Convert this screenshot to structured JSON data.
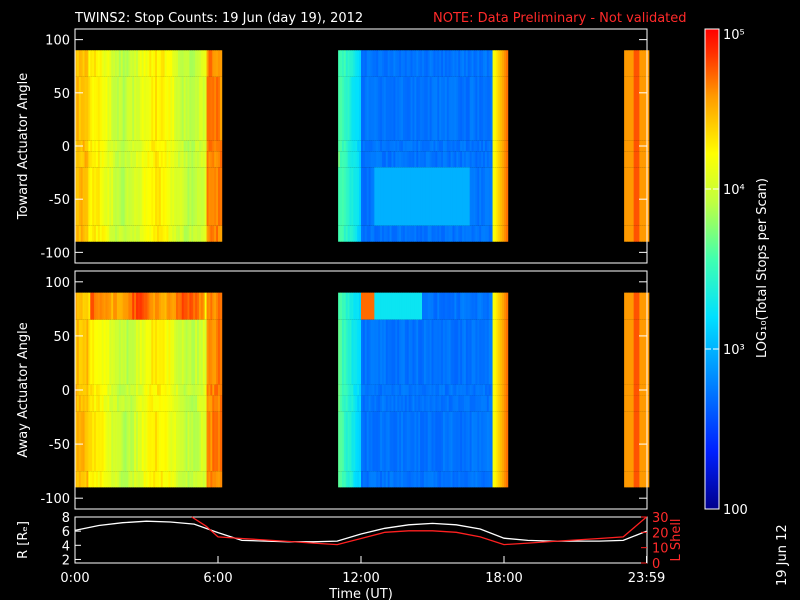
{
  "header": {
    "title": "TWINS2: Stop Counts: 19 Jun (day  19), 2012",
    "note": "NOTE: Data Preliminary - Not validated"
  },
  "side_date": "19 Jun 12",
  "colors": {
    "title": "#ffffff",
    "note": "#ff2020",
    "lshell": "#ff2020",
    "r": "#ffffff",
    "background": "#000000"
  },
  "chart_data": [
    {
      "type": "heatmap",
      "panel": "top",
      "ylabel": "Toward Actuator Angle",
      "ylim": [
        -110,
        110
      ],
      "yticks": [
        "100",
        "50",
        "0",
        "-50",
        "-100"
      ],
      "xlim": [
        0,
        24
      ],
      "data_coverage_hours": [
        [
          0.0,
          6.1
        ],
        [
          11.0,
          18.1
        ],
        [
          23.0,
          24.0
        ]
      ],
      "angle_range": [
        -90,
        90
      ],
      "colorscale": "log10",
      "description_levels": "segment1: yellow/orange ~1e4-3e4 counts; segment2: blue ~600-1500 counts; segment3: orange ~3e4"
    },
    {
      "type": "heatmap",
      "panel": "middle",
      "ylabel": "Away Actuator Angle",
      "ylim": [
        -110,
        110
      ],
      "yticks": [
        "100",
        "50",
        "0",
        "-50",
        "-100"
      ],
      "xlim": [
        0,
        24
      ],
      "data_coverage_hours": [
        [
          0.0,
          6.1
        ],
        [
          11.0,
          18.1
        ],
        [
          23.0,
          24.0
        ]
      ],
      "angle_range": [
        -90,
        90
      ],
      "colorscale": "log10"
    },
    {
      "type": "line",
      "panel": "bottom",
      "xlabel": "Time (UT)",
      "xticks": [
        "0:00",
        "6:00",
        "12:00",
        "18:00",
        "23:59"
      ],
      "ylabel_left": "R [Rₑ]",
      "yticks_left": [
        "8",
        "6",
        "4",
        "2"
      ],
      "ylim_left": [
        1.5,
        8
      ],
      "ylabel_right": "L Shell",
      "yticks_right": [
        "30",
        "20",
        "10",
        "0"
      ],
      "ylim_right": [
        0,
        30
      ],
      "series": [
        {
          "name": "R [Rₑ]",
          "axis": "left",
          "color": "#ffffff",
          "x": [
            0,
            1,
            2,
            3,
            4,
            5,
            6,
            7,
            8,
            9,
            10,
            11,
            12,
            13,
            14,
            15,
            16,
            17,
            18,
            19,
            20,
            21,
            22,
            23,
            23.98
          ],
          "y": [
            6.1,
            6.8,
            7.2,
            7.4,
            7.3,
            7.0,
            5.8,
            4.7,
            4.6,
            4.5,
            4.5,
            4.6,
            5.6,
            6.4,
            6.9,
            7.1,
            6.9,
            6.3,
            5.0,
            4.7,
            4.6,
            4.6,
            4.6,
            4.7,
            6.0
          ]
        },
        {
          "name": "L Shell",
          "axis": "right",
          "color": "#ff2020",
          "x": [
            4.9,
            5.5,
            6.0,
            7.0,
            8.0,
            9.0,
            10.0,
            11.0,
            12.0,
            13.0,
            14.0,
            15.0,
            16.0,
            17.0,
            18.0,
            19.0,
            20.0,
            21.0,
            22.0,
            23.0,
            23.98
          ],
          "y": [
            30,
            24,
            17,
            16,
            15,
            14,
            13,
            12,
            16,
            20,
            21,
            21,
            20,
            17,
            12,
            13,
            14,
            15,
            16,
            17,
            30
          ]
        }
      ]
    }
  ],
  "colorbar": {
    "label": "LOG₁₀(Total Stops per Scan)",
    "ticks": [
      "10⁵",
      "10⁴",
      "10³",
      "100"
    ],
    "range": [
      100,
      100000
    ]
  }
}
